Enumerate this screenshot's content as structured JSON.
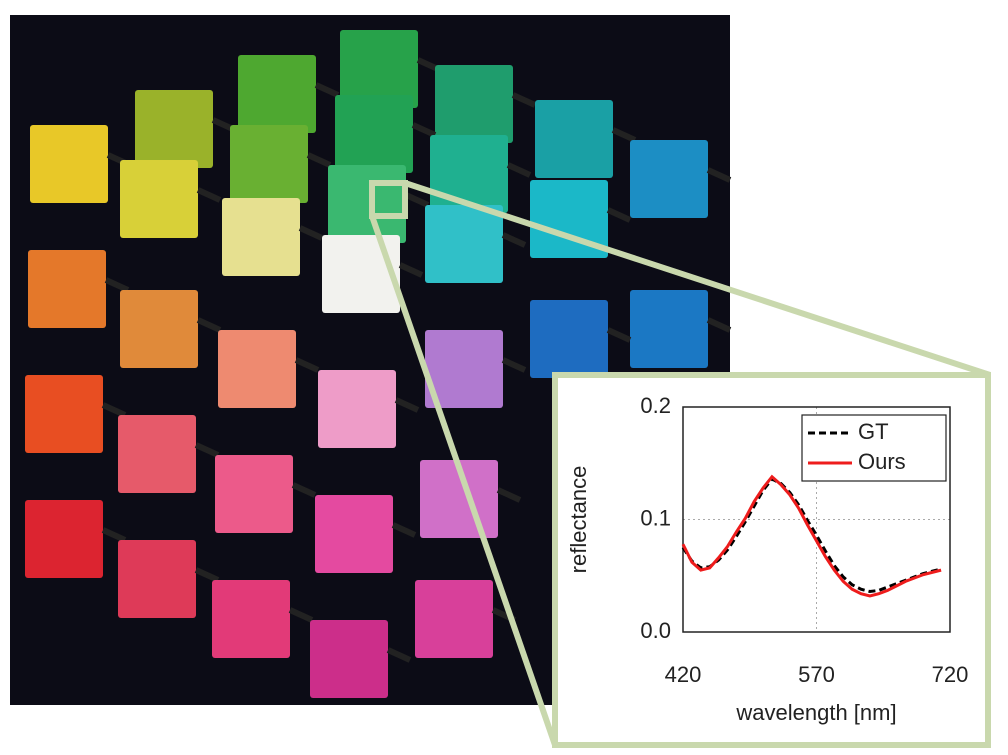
{
  "chart_data": {
    "type": "line",
    "xlabel": "wavelength [nm]",
    "ylabel": "reflectance",
    "xlim": [
      420,
      720
    ],
    "xticks": [
      420,
      570,
      720
    ],
    "ylim": [
      0,
      0.2
    ],
    "yticks": [
      {
        "value": 0,
        "label": "0.0"
      },
      0.1,
      0.2
    ],
    "grid": true,
    "legend": "upper right",
    "x": [
      420,
      430,
      440,
      450,
      460,
      470,
      480,
      490,
      500,
      510,
      520,
      530,
      540,
      550,
      560,
      570,
      580,
      590,
      600,
      610,
      620,
      630,
      640,
      650,
      660,
      670,
      680,
      690,
      700,
      710
    ],
    "series": [
      {
        "name": "GT",
        "color": "#000000",
        "dash": true,
        "values": [
          0.075,
          0.063,
          0.057,
          0.058,
          0.064,
          0.073,
          0.085,
          0.098,
          0.112,
          0.126,
          0.136,
          0.132,
          0.124,
          0.113,
          0.099,
          0.086,
          0.072,
          0.059,
          0.049,
          0.042,
          0.038,
          0.036,
          0.037,
          0.04,
          0.043,
          0.046,
          0.049,
          0.052,
          0.054,
          0.056
        ]
      },
      {
        "name": "Ours",
        "color": "#ee1c1c",
        "dash": false,
        "values": [
          0.078,
          0.062,
          0.055,
          0.057,
          0.066,
          0.076,
          0.089,
          0.101,
          0.116,
          0.128,
          0.138,
          0.131,
          0.122,
          0.11,
          0.095,
          0.081,
          0.067,
          0.055,
          0.045,
          0.038,
          0.034,
          0.032,
          0.034,
          0.037,
          0.041,
          0.045,
          0.048,
          0.051,
          0.053,
          0.055
        ]
      }
    ]
  }
}
